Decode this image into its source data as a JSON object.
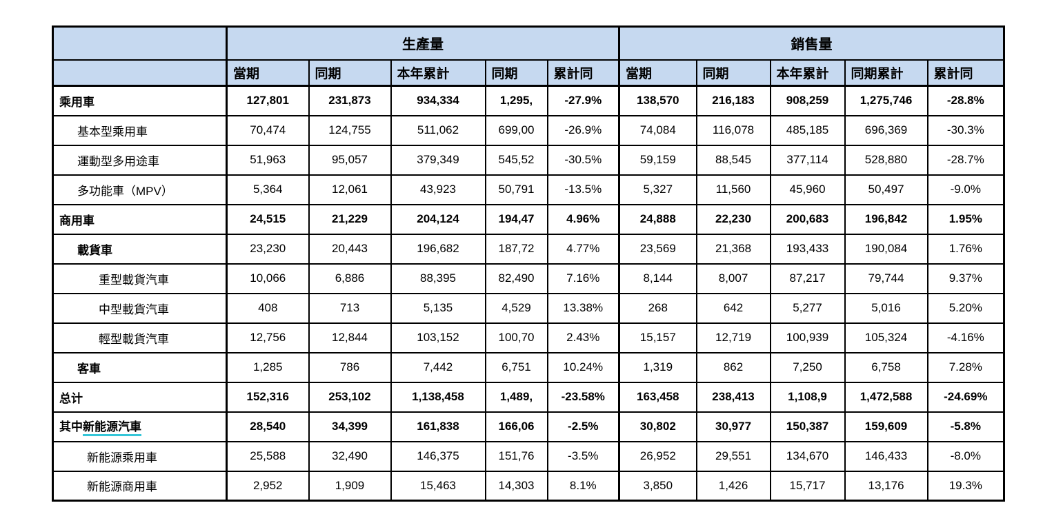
{
  "accent_colors": {
    "header_background": "#C6D9F0",
    "border": "#000000",
    "underline_accent": "#35C6D8"
  },
  "chart_data": {
    "type": "table",
    "group_headers": [
      "生產量",
      "銷售量"
    ],
    "columns": [
      "當期",
      "同期",
      "本年累計",
      "同期",
      "累計同",
      "當期",
      "同期",
      "本年累計",
      "同期累計",
      "累計同"
    ],
    "rows": [
      {
        "label": "乘用車",
        "indent": 0,
        "bold": true,
        "values": [
          "127,801",
          "231,873",
          "934,334",
          "1,295,",
          "-27.9%",
          "138,570",
          "216,183",
          "908,259",
          "1,275,746",
          "-28.8%"
        ]
      },
      {
        "label": "基本型乘用車",
        "indent": 1,
        "bold": false,
        "values": [
          "70,474",
          "124,755",
          "511,062",
          "699,00",
          "-26.9%",
          "74,084",
          "116,078",
          "485,185",
          "696,369",
          "-30.3%"
        ]
      },
      {
        "label": "運動型多用途車",
        "indent": 1,
        "bold": false,
        "values": [
          "51,963",
          "95,057",
          "379,349",
          "545,52",
          "-30.5%",
          "59,159",
          "88,545",
          "377,114",
          "528,880",
          "-28.7%"
        ]
      },
      {
        "label": "多功能車（MPV）",
        "indent": 1,
        "bold": false,
        "values": [
          "5,364",
          "12,061",
          "43,923",
          "50,791",
          "-13.5%",
          "5,327",
          "11,560",
          "45,960",
          "50,497",
          "-9.0%"
        ]
      },
      {
        "label": "商用車",
        "indent": 0,
        "bold": true,
        "values": [
          "24,515",
          "21,229",
          "204,124",
          "194,47",
          "4.96%",
          "24,888",
          "22,230",
          "200,683",
          "196,842",
          "1.95%"
        ]
      },
      {
        "label": "載貨車",
        "indent": 1,
        "bold": false,
        "label_bold": true,
        "values": [
          "23,230",
          "20,443",
          "196,682",
          "187,72",
          "4.77%",
          "23,569",
          "21,368",
          "193,433",
          "190,084",
          "1.76%"
        ]
      },
      {
        "label": "重型載貨汽車",
        "indent": 2,
        "bold": false,
        "values": [
          "10,066",
          "6,886",
          "88,395",
          "82,490",
          "7.16%",
          "8,144",
          "8,007",
          "87,217",
          "79,744",
          "9.37%"
        ]
      },
      {
        "label": "中型載貨汽車",
        "indent": 2,
        "bold": false,
        "values": [
          "408",
          "713",
          "5,135",
          "4,529",
          "13.38%",
          "268",
          "642",
          "5,277",
          "5,016",
          "5.20%"
        ]
      },
      {
        "label": "輕型載貨汽車",
        "indent": 2,
        "bold": false,
        "values": [
          "12,756",
          "12,844",
          "103,152",
          "100,70",
          "2.43%",
          "15,157",
          "12,719",
          "100,939",
          "105,324",
          "-4.16%"
        ]
      },
      {
        "label": "客車",
        "indent": 1,
        "bold": false,
        "label_bold": true,
        "values": [
          "1,285",
          "786",
          "7,442",
          "6,751",
          "10.24%",
          "1,319",
          "862",
          "7,250",
          "6,758",
          "7.28%"
        ]
      },
      {
        "label": "总计",
        "indent": 0,
        "bold": true,
        "values": [
          "152,316",
          "253,102",
          "1,138,458",
          "1,489,",
          "-23.58%",
          "163,458",
          "238,413",
          "1,108,9",
          "1,472,588",
          "-24.69%"
        ]
      },
      {
        "label": "其中",
        "label_underline": "新能源汽車",
        "indent": 0,
        "bold": true,
        "values": [
          "28,540",
          "34,399",
          "161,838",
          "166,06",
          "-2.5%",
          "30,802",
          "30,977",
          "150,387",
          "159,609",
          "-5.8%"
        ]
      },
      {
        "label": "新能源乘用車",
        "indent": 3,
        "bold": false,
        "values": [
          "25,588",
          "32,490",
          "146,375",
          "151,76",
          "-3.5%",
          "26,952",
          "29,551",
          "134,670",
          "146,433",
          "-8.0%"
        ]
      },
      {
        "label": "新能源商用車",
        "indent": 3,
        "bold": false,
        "values": [
          "2,952",
          "1,909",
          "15,463",
          "14,303",
          "8.1%",
          "3,850",
          "1,426",
          "15,717",
          "13,176",
          "19.3%"
        ]
      }
    ]
  }
}
